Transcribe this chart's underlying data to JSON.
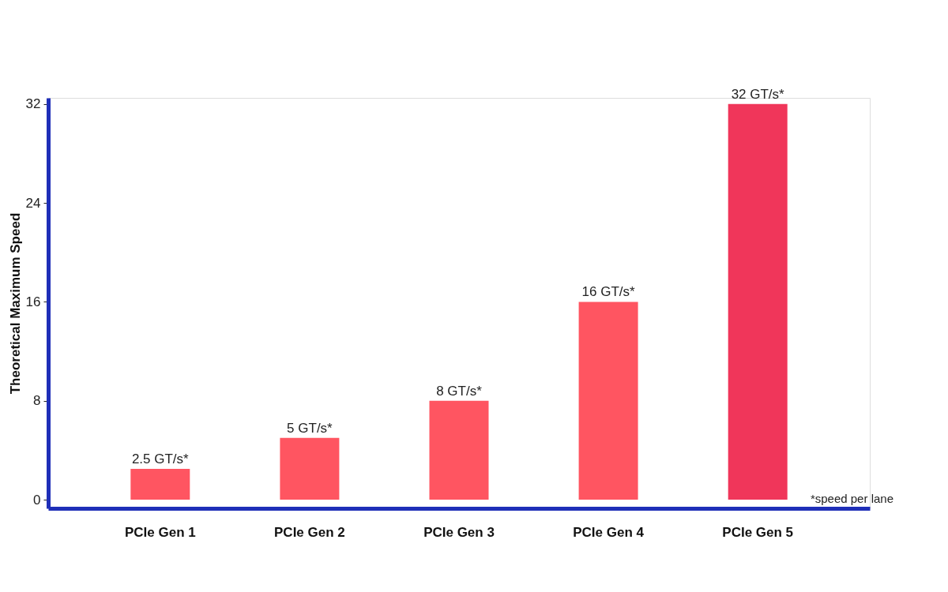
{
  "chart_data": {
    "type": "bar",
    "ylabel": "Theoretical Maximum Speed",
    "categories": [
      "PCIe Gen 1",
      "PCIe Gen 2",
      "PCIe Gen 3",
      "PCIe Gen 4",
      "PCIe Gen 5"
    ],
    "values": [
      2.5,
      5,
      8,
      16,
      32
    ],
    "colors": [
      "#ff5561",
      "#ff5561",
      "#ff5561",
      "#ff5561",
      "#f0365a"
    ],
    "value_labels": [
      "2.5 GT/s*",
      "5 GT/s*",
      "8 GT/s*",
      "16 GT/s*",
      "32 GT/s*"
    ],
    "ylim": [
      -0.7,
      32.5
    ],
    "yticks": [
      0,
      8,
      16,
      24,
      32
    ],
    "grid": false,
    "annotations": [
      "*speed per lane"
    ]
  }
}
